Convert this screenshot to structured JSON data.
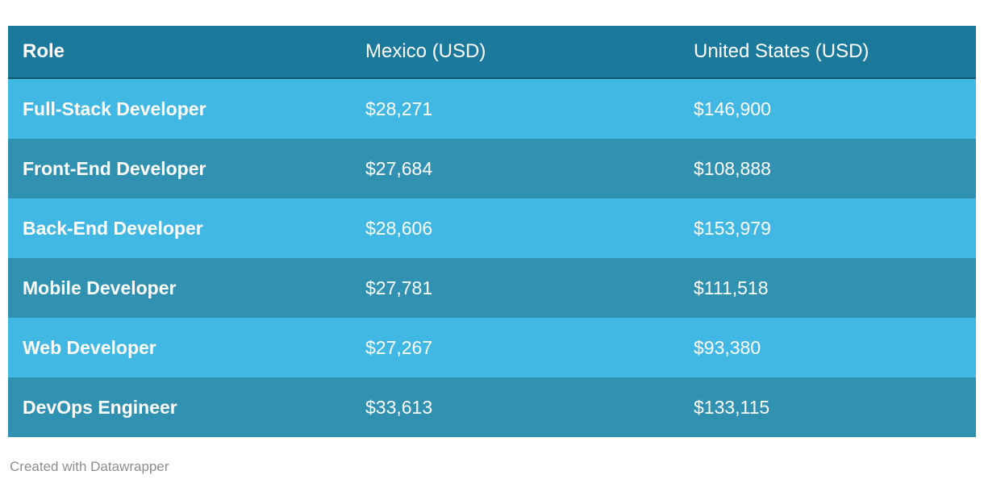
{
  "table": {
    "columns": [
      "Role",
      "Mexico (USD)",
      "United States (USD)"
    ],
    "rows": [
      {
        "role": "Full-Stack Developer",
        "mexico": "$28,271",
        "us": "$146,900"
      },
      {
        "role": "Front-End Developer",
        "mexico": "$27,684",
        "us": "$108,888"
      },
      {
        "role": "Back-End Developer",
        "mexico": "$28,606",
        "us": "$153,979"
      },
      {
        "role": "Mobile Developer",
        "mexico": "$27,781",
        "us": "$111,518"
      },
      {
        "role": "Web Developer",
        "mexico": "$27,267",
        "us": "$93,380"
      },
      {
        "role": "DevOps Engineer",
        "mexico": "$33,613",
        "us": "$133,115"
      }
    ]
  },
  "footer": {
    "text": "Created with Datawrapper"
  },
  "colors": {
    "header-bg": "#1b7a9b",
    "row-light": "#41b8e3",
    "row-dark": "#3092b0",
    "cell-text": "#ffffff",
    "footer-text": "#8e8e8e",
    "header-border": "#11586f"
  },
  "chart_data": {
    "type": "table",
    "title": "",
    "columns": [
      "Role",
      "Mexico (USD)",
      "United States (USD)"
    ],
    "categories": [
      "Full-Stack Developer",
      "Front-End Developer",
      "Back-End Developer",
      "Mobile Developer",
      "Web Developer",
      "DevOps Engineer"
    ],
    "series": [
      {
        "name": "Mexico (USD)",
        "values": [
          28271,
          27684,
          28606,
          27781,
          27267,
          33613
        ]
      },
      {
        "name": "United States (USD)",
        "values": [
          146900,
          108888,
          153979,
          111518,
          93380,
          133115
        ]
      }
    ],
    "legend_position": "none",
    "grid": false
  }
}
